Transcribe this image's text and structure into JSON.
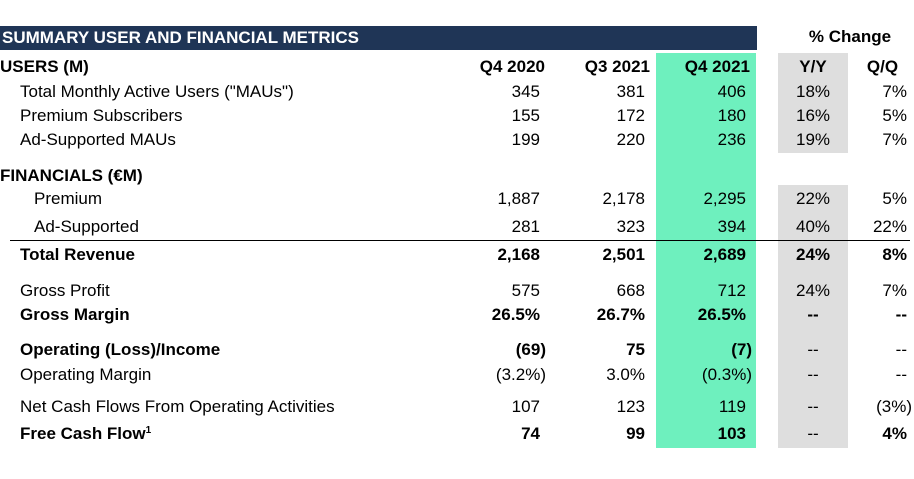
{
  "title": "SUMMARY USER AND FINANCIAL METRICS",
  "pct_change": "% Change",
  "headers": {
    "users": "USERS (M)",
    "financials": "FINANCIALS (€M)",
    "q4_2020": "Q4 2020",
    "q3_2021": "Q3 2021",
    "q4_2021": "Q4 2021",
    "yy": "Y/Y",
    "qq": "Q/Q"
  },
  "rows": [
    {
      "label": "Total Monthly Active Users (\"MAUs\")",
      "q4_2020": "345",
      "q3_2021": "381",
      "q4_2021": "406",
      "yy": "18%",
      "qq": "7%"
    },
    {
      "label": "Premium Subscribers",
      "q4_2020": "155",
      "q3_2021": "172",
      "q4_2021": "180",
      "yy": "16%",
      "qq": "5%"
    },
    {
      "label": "Ad-Supported MAUs",
      "q4_2020": "199",
      "q3_2021": "220",
      "q4_2021": "236",
      "yy": "19%",
      "qq": "7%"
    },
    {
      "label": "Premium",
      "q4_2020": "1,887",
      "q3_2021": "2,178",
      "q4_2021": "2,295",
      "yy": "22%",
      "qq": "5%"
    },
    {
      "label": "Ad-Supported",
      "q4_2020": "281",
      "q3_2021": "323",
      "q4_2021": "394",
      "yy": "40%",
      "qq": "22%"
    },
    {
      "label": "Total Revenue",
      "q4_2020": "2,168",
      "q3_2021": "2,501",
      "q4_2021": "2,689",
      "yy": "24%",
      "qq": "8%"
    },
    {
      "label": "Gross Profit",
      "q4_2020": "575",
      "q3_2021": "668",
      "q4_2021": "712",
      "yy": "24%",
      "qq": "7%"
    },
    {
      "label": "Gross Margin",
      "q4_2020": "26.5%",
      "q3_2021": "26.7%",
      "q4_2021": "26.5%",
      "yy": "--",
      "qq": "--"
    },
    {
      "label": "Operating (Loss)/Income",
      "q4_2020": "(69)",
      "q3_2021": "75",
      "q4_2021": "(7)",
      "yy": "--",
      "qq": "--"
    },
    {
      "label": "Operating Margin",
      "q4_2020": "(3.2%)",
      "q3_2021": "3.0%",
      "q4_2021": "(0.3%)",
      "yy": "--",
      "qq": "--"
    },
    {
      "label": "Net Cash Flows From Operating Activities",
      "q4_2020": "107",
      "q3_2021": "123",
      "q4_2021": "119",
      "yy": "--",
      "qq": "(3%)"
    },
    {
      "label": "Free Cash Flow",
      "footnote": "1",
      "q4_2020": "74",
      "q3_2021": "99",
      "q4_2021": "103",
      "yy": "--",
      "qq": "4%"
    }
  ],
  "colors": {
    "title_bar": "#1f3556",
    "highlight": "#6ef0be",
    "gray_band": "#dedede"
  }
}
